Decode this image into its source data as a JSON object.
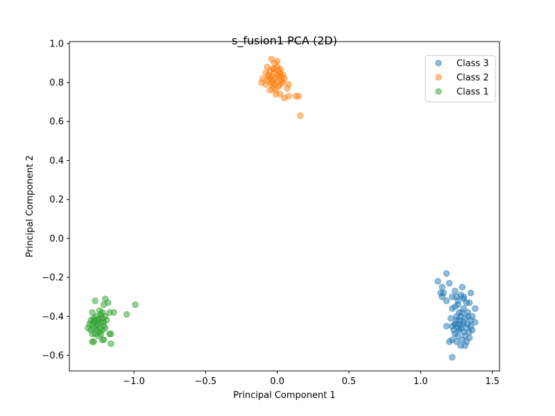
{
  "chart_data": {
    "type": "scatter",
    "title": "s_fusion1 PCA (2D)",
    "xlabel": "Principal Component 1",
    "ylabel": "Principal Component 2",
    "xlim": [
      -1.45,
      1.55
    ],
    "ylim": [
      -0.68,
      1.01
    ],
    "xticks": [
      -1.0,
      -0.5,
      0.0,
      0.5,
      1.0,
      1.5
    ],
    "xtick_labels": [
      "−1.0",
      "−0.5",
      "0.0",
      "0.5",
      "1.0",
      "1.5"
    ],
    "yticks": [
      -0.6,
      -0.4,
      -0.2,
      0.0,
      0.2,
      0.4,
      0.6,
      0.8,
      1.0
    ],
    "ytick_labels": [
      "−0.6",
      "−0.4",
      "−0.2",
      "0.0",
      "0.2",
      "0.4",
      "0.6",
      "0.8",
      "1.0"
    ],
    "grid": false,
    "legend_position": "top-right",
    "series": [
      {
        "name": "Class 3",
        "color": "#1f77b4",
        "points": [
          [
            1.12,
            -0.22
          ],
          [
            1.18,
            -0.18
          ],
          [
            1.2,
            -0.23
          ],
          [
            1.15,
            -0.25
          ],
          [
            1.14,
            -0.28
          ],
          [
            1.16,
            -0.28
          ],
          [
            1.15,
            -0.3
          ],
          [
            1.18,
            -0.32
          ],
          [
            1.22,
            -0.3
          ],
          [
            1.24,
            -0.27
          ],
          [
            1.25,
            -0.3
          ],
          [
            1.26,
            -0.34
          ],
          [
            1.28,
            -0.29
          ],
          [
            1.29,
            -0.25
          ],
          [
            1.3,
            -0.3
          ],
          [
            1.32,
            -0.33
          ],
          [
            1.34,
            -0.33
          ],
          [
            1.35,
            -0.28
          ],
          [
            1.38,
            -0.36
          ],
          [
            1.22,
            -0.36
          ],
          [
            1.24,
            -0.35
          ],
          [
            1.27,
            -0.38
          ],
          [
            1.3,
            -0.36
          ],
          [
            1.33,
            -0.38
          ],
          [
            1.36,
            -0.4
          ],
          [
            1.35,
            -0.42
          ],
          [
            1.38,
            -0.43
          ],
          [
            1.18,
            -0.45
          ],
          [
            1.22,
            -0.45
          ],
          [
            1.24,
            -0.44
          ],
          [
            1.25,
            -0.42
          ],
          [
            1.26,
            -0.46
          ],
          [
            1.27,
            -0.42
          ],
          [
            1.28,
            -0.4
          ],
          [
            1.29,
            -0.44
          ],
          [
            1.3,
            -0.43
          ],
          [
            1.31,
            -0.41
          ],
          [
            1.32,
            -0.46
          ],
          [
            1.33,
            -0.44
          ],
          [
            1.34,
            -0.48
          ],
          [
            1.31,
            -0.5
          ],
          [
            1.29,
            -0.52
          ],
          [
            1.26,
            -0.5
          ],
          [
            1.24,
            -0.49
          ],
          [
            1.22,
            -0.52
          ],
          [
            1.2,
            -0.53
          ],
          [
            1.25,
            -0.53
          ],
          [
            1.28,
            -0.55
          ],
          [
            1.32,
            -0.53
          ],
          [
            1.31,
            -0.55
          ],
          [
            1.36,
            -0.47
          ],
          [
            1.35,
            -0.45
          ],
          [
            1.23,
            -0.47
          ],
          [
            1.27,
            -0.47
          ],
          [
            1.3,
            -0.48
          ],
          [
            1.22,
            -0.61
          ],
          [
            1.25,
            -0.4
          ],
          [
            1.29,
            -0.38
          ],
          [
            1.33,
            -0.4
          ],
          [
            1.26,
            -0.32
          ],
          [
            1.3,
            -0.31
          ],
          [
            1.21,
            -0.41
          ],
          [
            1.28,
            -0.46
          ],
          [
            1.34,
            -0.51
          ],
          [
            1.24,
            -0.44
          ],
          [
            1.27,
            -0.44
          ]
        ]
      },
      {
        "name": "Class 2",
        "color": "#ff7f0e",
        "points": [
          [
            -0.04,
            0.92
          ],
          [
            -0.02,
            0.9
          ],
          [
            0.0,
            0.91
          ],
          [
            -0.07,
            0.88
          ],
          [
            -0.05,
            0.86
          ],
          [
            -0.03,
            0.87
          ],
          [
            0.0,
            0.88
          ],
          [
            0.02,
            0.87
          ],
          [
            -0.08,
            0.85
          ],
          [
            -0.06,
            0.84
          ],
          [
            -0.04,
            0.83
          ],
          [
            -0.02,
            0.85
          ],
          [
            0.0,
            0.84
          ],
          [
            0.02,
            0.85
          ],
          [
            0.04,
            0.84
          ],
          [
            -0.1,
            0.82
          ],
          [
            -0.07,
            0.81
          ],
          [
            -0.05,
            0.82
          ],
          [
            -0.03,
            0.81
          ],
          [
            -0.01,
            0.82
          ],
          [
            0.01,
            0.83
          ],
          [
            0.03,
            0.81
          ],
          [
            0.05,
            0.82
          ],
          [
            -0.11,
            0.8
          ],
          [
            -0.08,
            0.79
          ],
          [
            -0.04,
            0.8
          ],
          [
            -0.02,
            0.79
          ],
          [
            0.0,
            0.8
          ],
          [
            0.02,
            0.79
          ],
          [
            0.04,
            0.8
          ],
          [
            -0.03,
            0.77
          ],
          [
            -0.01,
            0.76
          ],
          [
            0.01,
            0.78
          ],
          [
            -0.05,
            0.76
          ],
          [
            0.08,
            0.79
          ],
          [
            0.07,
            0.77
          ],
          [
            0.02,
            0.74
          ],
          [
            0.08,
            0.73
          ],
          [
            -0.01,
            0.74
          ],
          [
            0.05,
            0.72
          ],
          [
            0.13,
            0.73
          ],
          [
            0.15,
            0.73
          ],
          [
            0.16,
            0.63
          ],
          [
            -0.02,
            0.87
          ],
          [
            0.01,
            0.86
          ],
          [
            -0.04,
            0.79
          ],
          [
            0.03,
            0.83
          ],
          [
            -0.06,
            0.83
          ]
        ]
      },
      {
        "name": "Class 1",
        "color": "#2ca02c",
        "points": [
          [
            -1.27,
            -0.32
          ],
          [
            -1.2,
            -0.31
          ],
          [
            -1.18,
            -0.33
          ],
          [
            -1.21,
            -0.34
          ],
          [
            -1.24,
            -0.37
          ],
          [
            -1.29,
            -0.38
          ],
          [
            -1.22,
            -0.38
          ],
          [
            -1.17,
            -0.38
          ],
          [
            -1.14,
            -0.38
          ],
          [
            -0.99,
            -0.34
          ],
          [
            -1.05,
            -0.39
          ],
          [
            -1.3,
            -0.42
          ],
          [
            -1.28,
            -0.41
          ],
          [
            -1.26,
            -0.4
          ],
          [
            -1.24,
            -0.41
          ],
          [
            -1.22,
            -0.41
          ],
          [
            -1.2,
            -0.4
          ],
          [
            -1.19,
            -0.42
          ],
          [
            -1.31,
            -0.44
          ],
          [
            -1.29,
            -0.44
          ],
          [
            -1.27,
            -0.43
          ],
          [
            -1.25,
            -0.44
          ],
          [
            -1.23,
            -0.43
          ],
          [
            -1.21,
            -0.45
          ],
          [
            -1.32,
            -0.46
          ],
          [
            -1.3,
            -0.47
          ],
          [
            -1.28,
            -0.46
          ],
          [
            -1.26,
            -0.47
          ],
          [
            -1.24,
            -0.46
          ],
          [
            -1.22,
            -0.47
          ],
          [
            -1.2,
            -0.46
          ],
          [
            -1.29,
            -0.49
          ],
          [
            -1.27,
            -0.49
          ],
          [
            -1.25,
            -0.5
          ],
          [
            -1.23,
            -0.49
          ],
          [
            -1.16,
            -0.49
          ],
          [
            -1.17,
            -0.49
          ],
          [
            -1.29,
            -0.53
          ],
          [
            -1.28,
            -0.53
          ],
          [
            -1.21,
            -0.52
          ],
          [
            -1.22,
            -0.52
          ],
          [
            -1.16,
            -0.54
          ],
          [
            -1.25,
            -0.42
          ],
          [
            -1.23,
            -0.39
          ],
          [
            -1.26,
            -0.45
          ],
          [
            -1.24,
            -0.48
          ],
          [
            -1.21,
            -0.43
          ],
          [
            -1.28,
            -0.42
          ]
        ]
      }
    ]
  }
}
